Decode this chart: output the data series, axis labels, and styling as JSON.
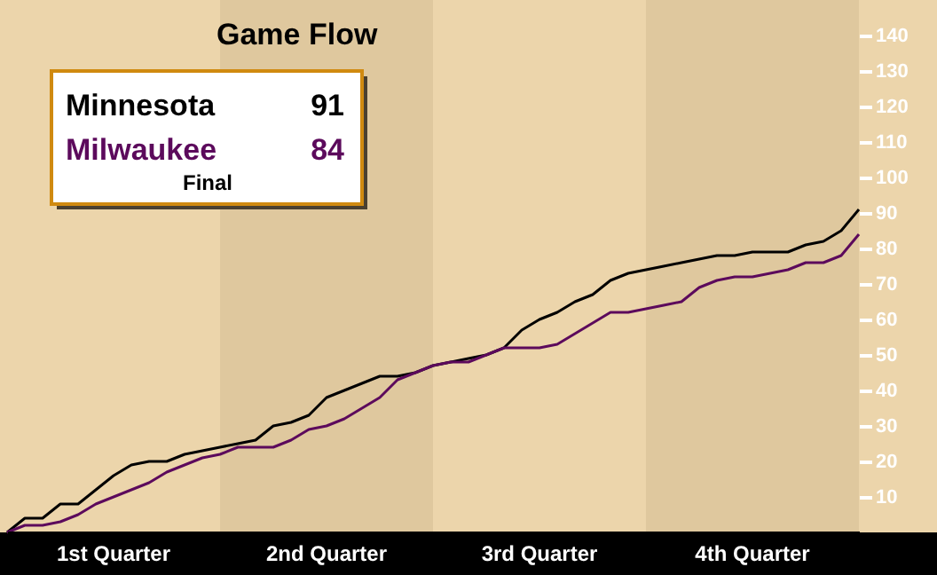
{
  "chart_data": {
    "type": "line",
    "title": "Game Flow",
    "categories": [
      null,
      null,
      null,
      null,
      null,
      null,
      null,
      null,
      null,
      null,
      null,
      null,
      null,
      null,
      null,
      null,
      null,
      null,
      null,
      null,
      null,
      null,
      null,
      null,
      null,
      null,
      null,
      null,
      null,
      null,
      null,
      null,
      null,
      null,
      null,
      null,
      null,
      null,
      null,
      null,
      null,
      null,
      null,
      null,
      null,
      null,
      null,
      null,
      null
    ],
    "ylim": [
      0,
      150
    ],
    "yticks": [
      10,
      20,
      30,
      40,
      50,
      60,
      70,
      80,
      90,
      100,
      110,
      120,
      130,
      140
    ],
    "grid": false,
    "series": [
      {
        "name": "Minnesota",
        "color": "#000000",
        "values": [
          0,
          4,
          4,
          8,
          8,
          12,
          16,
          19,
          20,
          20,
          22,
          23,
          24,
          25,
          26,
          30,
          31,
          33,
          38,
          40,
          42,
          44,
          44,
          45,
          47,
          48,
          49,
          50,
          52,
          57,
          60,
          62,
          65,
          67,
          71,
          73,
          74,
          75,
          76,
          77,
          78,
          78,
          79,
          79,
          79,
          81,
          82,
          85,
          91
        ]
      },
      {
        "name": "Milwaukee",
        "color": "#5c0a5c",
        "values": [
          0,
          2,
          2,
          3,
          5,
          8,
          10,
          12,
          14,
          17,
          19,
          21,
          22,
          24,
          24,
          24,
          26,
          29,
          30,
          32,
          35,
          38,
          43,
          45,
          47,
          48,
          48,
          50,
          52,
          52,
          52,
          53,
          56,
          59,
          62,
          62,
          63,
          64,
          65,
          69,
          71,
          72,
          72,
          73,
          74,
          76,
          76,
          78,
          84
        ]
      }
    ],
    "annotations": [
      "91",
      "84",
      "Final",
      "1st Quarter",
      "2nd Quarter",
      "3rd Quarter",
      "4th Quarter"
    ]
  }
}
